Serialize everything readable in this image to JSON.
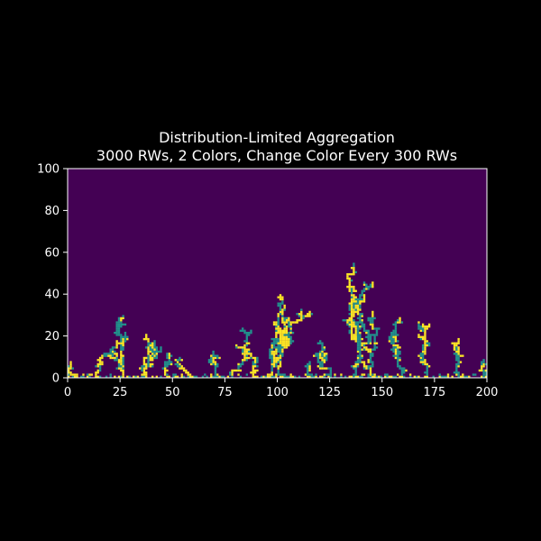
{
  "chart_data": {
    "type": "heatmap",
    "title_line1": "Distribution-Limited Aggregation",
    "title_line2": "3000 RWs, 2 Colors, Change Color Every 300 RWs",
    "xlabel": "",
    "ylabel": "",
    "xlim": [
      0,
      200
    ],
    "ylim": [
      0,
      100
    ],
    "x_ticks": [
      {
        "value": 0,
        "label": "0"
      },
      {
        "value": 25,
        "label": "25"
      },
      {
        "value": 50,
        "label": "50"
      },
      {
        "value": 75,
        "label": "75"
      },
      {
        "value": 100,
        "label": "100"
      },
      {
        "value": 125,
        "label": "125"
      },
      {
        "value": 150,
        "label": "150"
      },
      {
        "value": 175,
        "label": "175"
      },
      {
        "value": 200,
        "label": "200"
      }
    ],
    "y_ticks": [
      {
        "value": 0,
        "label": "0"
      },
      {
        "value": 20,
        "label": "20"
      },
      {
        "value": 40,
        "label": "40"
      },
      {
        "value": 60,
        "label": "60"
      },
      {
        "value": 80,
        "label": "80"
      },
      {
        "value": 100,
        "label": "100"
      }
    ],
    "colormap": "viridis",
    "colors": {
      "empty": "#440154",
      "color1": "#21918c",
      "color2": "#fde725"
    },
    "grid": false,
    "clusters": [
      {
        "x": 3,
        "height": 7,
        "seed": 11
      },
      {
        "x": 13,
        "height": 11,
        "seed": 12
      },
      {
        "x": 26,
        "height": 27,
        "seed": 13
      },
      {
        "x": 36,
        "height": 20,
        "seed": 14
      },
      {
        "x": 48,
        "height": 11,
        "seed": 15
      },
      {
        "x": 57,
        "height": 9,
        "seed": 16
      },
      {
        "x": 68,
        "height": 12,
        "seed": 17
      },
      {
        "x": 78,
        "height": 23,
        "seed": 18
      },
      {
        "x": 88,
        "height": 13,
        "seed": 19
      },
      {
        "x": 96,
        "height": 24,
        "seed": 20
      },
      {
        "x": 102,
        "height": 39,
        "seed": 21
      },
      {
        "x": 115,
        "height": 7,
        "seed": 22
      },
      {
        "x": 124,
        "height": 17,
        "seed": 23
      },
      {
        "x": 136,
        "height": 54,
        "seed": 24
      },
      {
        "x": 143,
        "height": 31,
        "seed": 25
      },
      {
        "x": 159,
        "height": 26,
        "seed": 26
      },
      {
        "x": 171,
        "height": 26,
        "seed": 27
      },
      {
        "x": 186,
        "height": 18,
        "seed": 28
      },
      {
        "x": 197,
        "height": 8,
        "seed": 29
      }
    ]
  }
}
